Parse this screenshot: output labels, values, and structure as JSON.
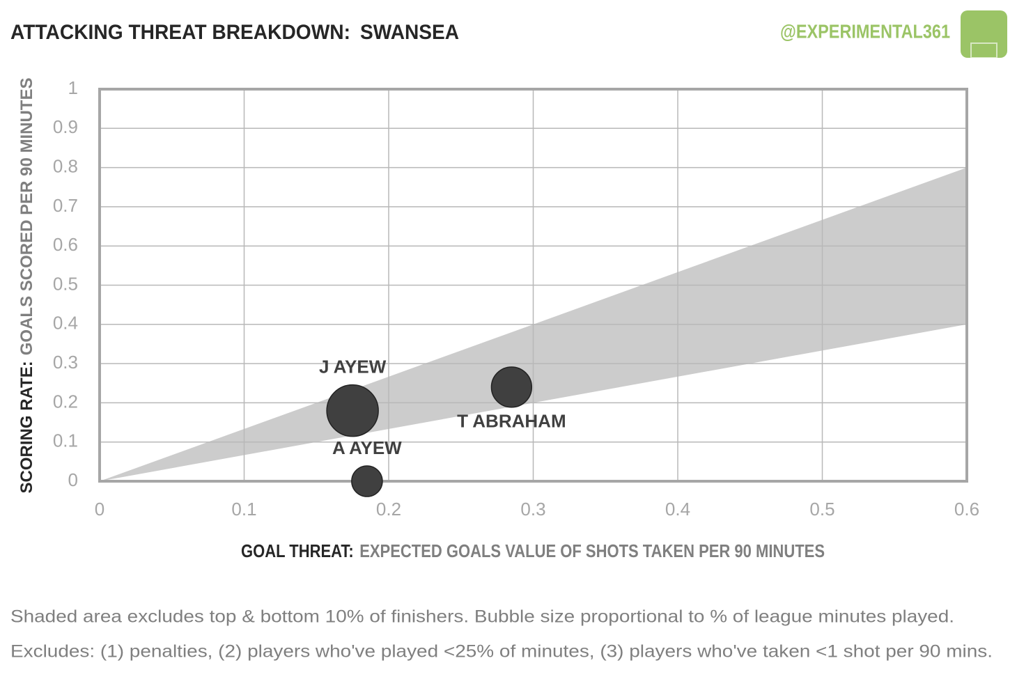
{
  "chart_data": {
    "type": "bubble",
    "title": "ATTACKING THREAT BREAKDOWN:",
    "team": "SWANSEA",
    "handle": "@EXPERIMENTAL361",
    "y_label": {
      "bold": "SCORING RATE:",
      "light": "GOALS SCORED PER 90 MINUTES"
    },
    "x_label": {
      "bold": "GOAL THREAT:",
      "light": "EXPECTED GOALS VALUE OF SHOTS TAKEN PER 90 MINUTES"
    },
    "points": {
      "names": [
        "J AYEW",
        "T ABRAHAM",
        "A AYEW"
      ],
      "x": [
        0.175,
        0.285,
        0.185
      ],
      "y": [
        0.18,
        0.24,
        0
      ],
      "size": [
        90,
        55,
        32
      ]
    },
    "color": "#404040",
    "shaded_band": {
      "x": [
        0,
        0.6
      ],
      "upper": [
        0,
        0.8
      ],
      "lower": [
        0,
        0.4
      ],
      "color": "#cccccc"
    },
    "xlim": [
      0,
      0.6
    ],
    "ylim": [
      0,
      1
    ],
    "xticks": [
      0,
      0.1,
      0.2,
      0.3,
      0.4,
      0.5,
      0.6
    ],
    "yticks": [
      0,
      0.1,
      0.2,
      0.3,
      0.4,
      0.5,
      0.6,
      0.7,
      0.8,
      0.9,
      1
    ],
    "grid": true,
    "notes": [
      "Shaded area excludes top & bottom 10% of finishers. Bubble size proportional to % of league minutes played.",
      "Excludes: (1) penalties, (2) players who've played <25% of minutes, (3) players who've taken <1 shot per 90 mins."
    ]
  }
}
